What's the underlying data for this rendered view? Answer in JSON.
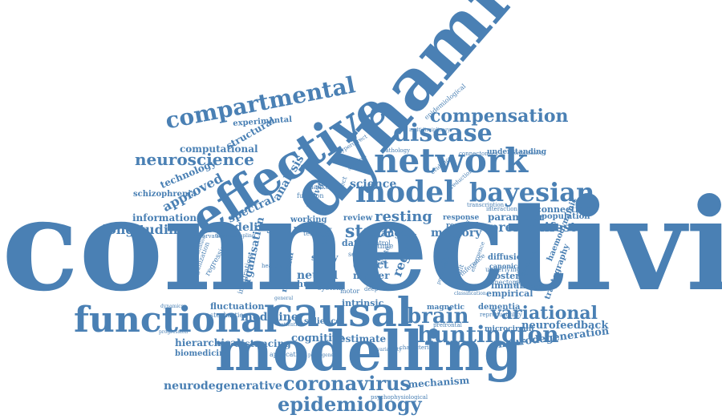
{
  "cloud": {
    "color": "#4a80b4",
    "words": [
      {
        "id": "connectivity",
        "text": "connectivity"
      },
      {
        "id": "dynamic",
        "text": "dynamic"
      },
      {
        "id": "effective",
        "text": "effective"
      },
      {
        "id": "modelling",
        "text": "modelling"
      },
      {
        "id": "causal",
        "text": "causal"
      },
      {
        "id": "functional",
        "text": "functional"
      },
      {
        "id": "network",
        "text": "network"
      },
      {
        "id": "model",
        "text": "model"
      },
      {
        "id": "bayesian",
        "text": "bayesian"
      },
      {
        "id": "disease",
        "text": "disease"
      },
      {
        "id": "compartmental",
        "text": "compartmental"
      },
      {
        "id": "compensation",
        "text": "compensation"
      },
      {
        "id": "huntington",
        "text": "huntington"
      },
      {
        "id": "coronavirus",
        "text": "coronavirus"
      },
      {
        "id": "epidemiology",
        "text": "epidemiology"
      },
      {
        "id": "brain",
        "text": "brain"
      },
      {
        "id": "variational",
        "text": "variational"
      },
      {
        "id": "neuroscience",
        "text": "neuroscience"
      },
      {
        "id": "state",
        "text": "state"
      },
      {
        "id": "resting",
        "text": "resting"
      },
      {
        "id": "longitudinal",
        "text": "longitudinal"
      },
      {
        "id": "premanifest",
        "text": "premanifest"
      },
      {
        "id": "neurodegenerative",
        "text": "neurodegenerative"
      },
      {
        "id": "neurodegeneration",
        "text": "neurodegeneration"
      },
      {
        "id": "neurofeedback",
        "text": "neurofeedback"
      },
      {
        "id": "computational",
        "text": "computational"
      },
      {
        "id": "approved",
        "text": "approved"
      },
      {
        "id": "structural",
        "text": "structural"
      },
      {
        "id": "technology",
        "text": "technology"
      },
      {
        "id": "schizophrenia",
        "text": "schizophrenia"
      },
      {
        "id": "information",
        "text": "information"
      },
      {
        "id": "spectral",
        "text": "spectral"
      },
      {
        "id": "modeling",
        "text": "modeling"
      },
      {
        "id": "science",
        "text": "science"
      },
      {
        "id": "analysis",
        "text": "analysis"
      },
      {
        "id": "hierarchical",
        "text": "hierarchical"
      },
      {
        "id": "biomedicine",
        "text": "biomedicine"
      },
      {
        "id": "distancing",
        "text": "distancing"
      },
      {
        "id": "medicine",
        "text": "medicine"
      },
      {
        "id": "fluctuation",
        "text": "fluctuation"
      },
      {
        "id": "cognitive",
        "text": "cognitive"
      },
      {
        "id": "estimate",
        "text": "estimate"
      },
      {
        "id": "mechanism",
        "text": "mechanism"
      },
      {
        "id": "neural",
        "text": "neural"
      },
      {
        "id": "effect",
        "text": "effect"
      },
      {
        "id": "matter",
        "text": "matter"
      },
      {
        "id": "human",
        "text": "human"
      },
      {
        "id": "region",
        "text": "region"
      },
      {
        "id": "graph",
        "text": "graph"
      },
      {
        "id": "memory",
        "text": "memory"
      },
      {
        "id": "research",
        "text": "research"
      },
      {
        "id": "parameter",
        "text": "parameter"
      },
      {
        "id": "population",
        "text": "population"
      },
      {
        "id": "connection",
        "text": "connection"
      },
      {
        "id": "review",
        "text": "review"
      },
      {
        "id": "change",
        "text": "change"
      },
      {
        "id": "data",
        "text": "data"
      },
      {
        "id": "study",
        "text": "study"
      },
      {
        "id": "experimental",
        "text": "experimental"
      },
      {
        "id": "dementia",
        "text": "dementia"
      },
      {
        "id": "magnetic",
        "text": "magnetic"
      },
      {
        "id": "diffusion",
        "text": "diffusion"
      },
      {
        "id": "posterior",
        "text": "posterior"
      },
      {
        "id": "immunity",
        "text": "immunity"
      },
      {
        "id": "empirical",
        "text": "empirical"
      },
      {
        "id": "canonical",
        "text": "canonical"
      },
      {
        "id": "underlying",
        "text": "underlying"
      },
      {
        "id": "microcircuit",
        "text": "microcircuit"
      },
      {
        "id": "tractography",
        "text": "tractography"
      },
      {
        "id": "haemodynamic",
        "text": "haemodynamic"
      },
      {
        "id": "understanding",
        "text": "understanding"
      },
      {
        "id": "pathology",
        "text": "pathology"
      },
      {
        "id": "transcription",
        "text": "transcription"
      },
      {
        "id": "response",
        "text": "response"
      },
      {
        "id": "stochastic",
        "text": "stochastic"
      },
      {
        "id": "integration",
        "text": "integration"
      },
      {
        "id": "organisation",
        "text": "organisation"
      },
      {
        "id": "neuronal",
        "text": "neuronal"
      },
      {
        "id": "intrinsic",
        "text": "intrinsic"
      },
      {
        "id": "salience",
        "text": "salience"
      },
      {
        "id": "system",
        "text": "system"
      },
      {
        "id": "working",
        "text": "working"
      },
      {
        "id": "pattern",
        "text": "pattern"
      },
      {
        "id": "testing",
        "text": "testing"
      },
      {
        "id": "blanket",
        "text": "blanket"
      },
      {
        "id": "epidemiological",
        "text": "epidemiological"
      },
      {
        "id": "regression",
        "text": "regression"
      },
      {
        "id": "reproducibility",
        "text": "reproducibility"
      },
      {
        "id": "prefrontal",
        "text": "prefrontal"
      },
      {
        "id": "application",
        "text": "application"
      },
      {
        "id": "psychophysiological",
        "text": "psychophysiological"
      },
      {
        "id": "reservation",
        "text": "reservation"
      },
      {
        "id": "difference",
        "text": "difference"
      },
      {
        "id": "sampling",
        "text": "sampling"
      },
      {
        "id": "evidence",
        "text": "evidence"
      },
      {
        "id": "reduction",
        "text": "reduction"
      },
      {
        "id": "inference",
        "text": "inference"
      },
      {
        "id": "default",
        "text": "default"
      },
      {
        "id": "emergence",
        "text": "emergence"
      },
      {
        "id": "organization",
        "text": "organization"
      },
      {
        "id": "self",
        "text": "self"
      },
      {
        "id": "motor",
        "text": "motor"
      },
      {
        "id": "white",
        "text": "white"
      },
      {
        "id": "social",
        "text": "social"
      },
      {
        "id": "activity",
        "text": "activity"
      },
      {
        "id": "function",
        "text": "function"
      },
      {
        "id": "subject",
        "text": "subject"
      },
      {
        "id": "control",
        "text": "control"
      },
      {
        "id": "wave",
        "text": "wave"
      },
      {
        "id": "time",
        "text": "time"
      },
      {
        "id": "mode",
        "text": "mode"
      },
      {
        "id": "characterise",
        "text": "characterise"
      },
      {
        "id": "connectome",
        "text": "connectome"
      },
      {
        "id": "metaanalysis",
        "text": "metaanalysis"
      },
      {
        "id": "connectomics",
        "text": "connectomics"
      },
      {
        "id": "hyperdirect",
        "text": "hyperdirect"
      },
      {
        "id": "interaction",
        "text": "interaction"
      },
      {
        "id": "performance",
        "text": "performance"
      },
      {
        "id": "symptom",
        "text": "symptom"
      },
      {
        "id": "multidisciplinary",
        "text": "multidisciplinary"
      },
      {
        "id": "neuropsychiatric",
        "text": "neuropsychiatric"
      },
      {
        "id": "classification",
        "text": "classification"
      },
      {
        "id": "prediction",
        "text": "prediction"
      },
      {
        "id": "healthy",
        "text": "healthy"
      },
      {
        "id": "general",
        "text": "general"
      },
      {
        "id": "attention",
        "text": "attention"
      },
      {
        "id": "variability",
        "text": "variability"
      },
      {
        "id": "pathogenesis",
        "text": "pathogenesis"
      },
      {
        "id": "progression",
        "text": "progression"
      },
      {
        "id": "dynamics",
        "text": "dynamics"
      },
      {
        "id": "synchronization",
        "text": "synchronization"
      },
      {
        "id": "coupling",
        "text": "coupling"
      },
      {
        "id": "deep",
        "text": "deep"
      }
    ]
  }
}
